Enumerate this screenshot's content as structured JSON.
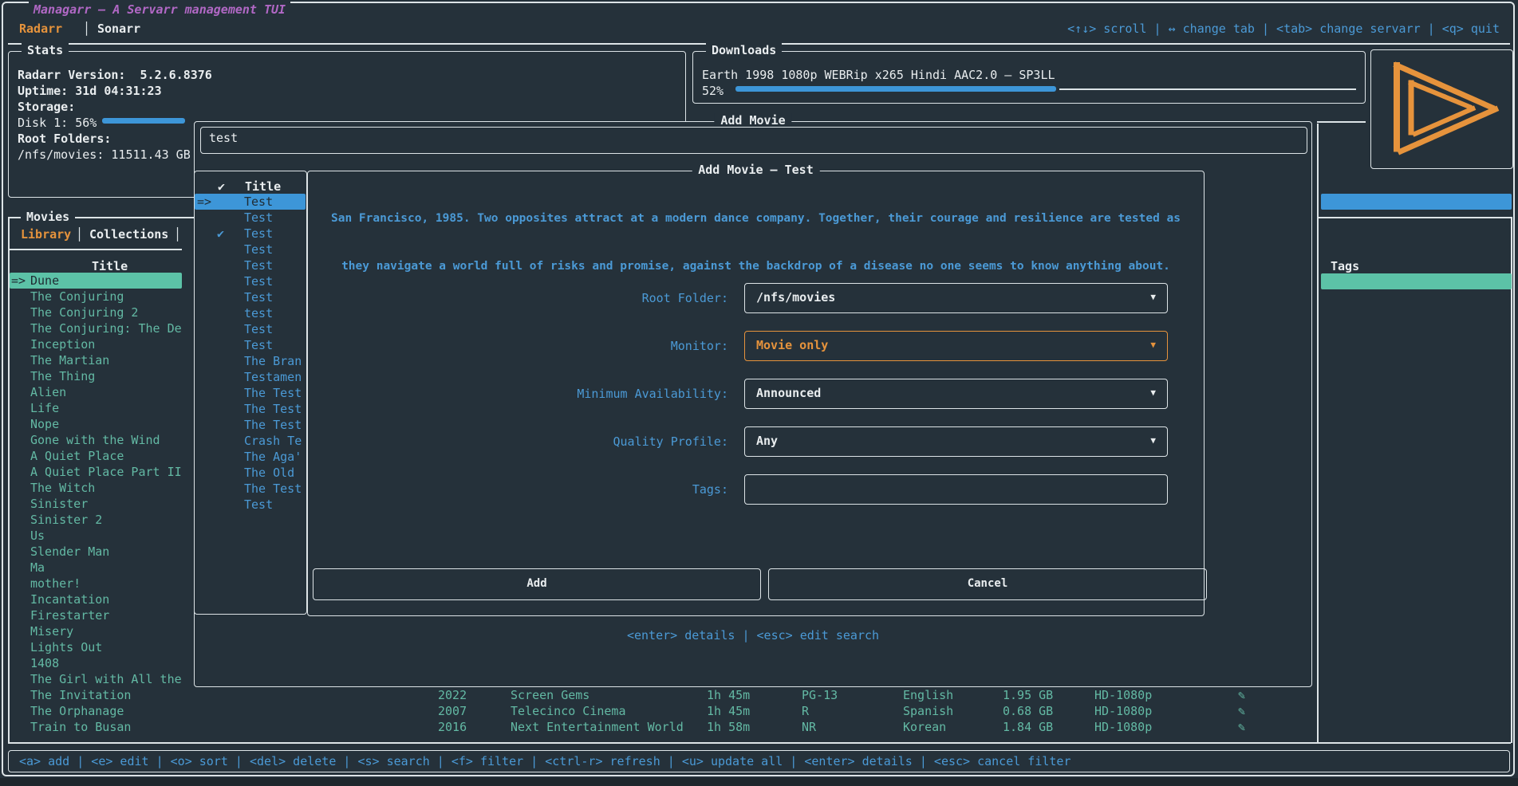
{
  "app": {
    "title": "Managarr – A Servarr management TUI",
    "servarr_tabs": [
      {
        "label": "Radarr",
        "active": true
      },
      {
        "label": "Sonarr",
        "active": false
      }
    ],
    "tab_separator": "│",
    "top_keybinds": "<↑↓> scroll | ↔ change tab | <tab> change servarr | <q> quit",
    "bottom_keybinds": "<a> add | <e> edit | <o> sort | <del> delete | <s> search | <f> filter | <ctrl-r> refresh | <u> update all | <enter> details | <esc> cancel filter"
  },
  "icons": {
    "check": "✔",
    "pencil": "✎",
    "chevron_down": "▼"
  },
  "stats": {
    "title": "Stats",
    "version_line": "Radarr Version:  5.2.6.8376",
    "uptime_line": "Uptime: 31d 04:31:23",
    "storage_label": "Storage:",
    "disk_line": "Disk 1: 56%",
    "disk_percent": 56,
    "root_folders_label": "Root Folders:",
    "root_folder_usage": "/nfs/movies: 11511.43 GB"
  },
  "downloads": {
    "title": "Downloads",
    "item_name": "Earth 1998 1080p WEBRip x265 Hindi AAC2.0 – SP3LL",
    "percent_label": "52%",
    "percent": 52
  },
  "library": {
    "panel_title": "Movies",
    "tabs": [
      {
        "label": "Library",
        "active": true
      },
      {
        "label": "Collections",
        "active": false
      }
    ],
    "title_header": "Title",
    "tags_header": "Tags",
    "selected_index": 0,
    "items": [
      "Dune",
      "The Conjuring",
      "The Conjuring 2",
      "The Conjuring: The De",
      "Inception",
      "The Martian",
      "The Thing",
      "Alien",
      "Life",
      "Nope",
      "Gone with the Wind",
      "A Quiet Place",
      "A Quiet Place Part II",
      "The Witch",
      "Sinister",
      "Sinister 2",
      "Us",
      "Slender Man",
      "Ma",
      "mother!",
      "Incantation",
      "Firestarter",
      "Misery",
      "Lights Out",
      "1408",
      "The Girl with All the",
      "The Invitation",
      "The Orphanage",
      "Train to Busan"
    ],
    "visible_rows": [
      {
        "year": "2022",
        "studio": "Screen Gems",
        "runtime": "1h 45m",
        "certification": "PG-13",
        "language": "English",
        "size": "1.95 GB",
        "quality": "HD-1080p"
      },
      {
        "year": "2007",
        "studio": "Telecinco Cinema",
        "runtime": "1h 45m",
        "certification": "R",
        "language": "Spanish",
        "size": "0.68 GB",
        "quality": "HD-1080p"
      },
      {
        "year": "2016",
        "studio": "Next Entertainment World",
        "runtime": "1h 58m",
        "certification": "NR",
        "language": "Korean",
        "size": "1.84 GB",
        "quality": "HD-1080p"
      }
    ]
  },
  "add_movie_popup": {
    "title": "Add Movie",
    "search_value": "test",
    "results_title_header": "Title",
    "results": [
      {
        "title": "Test",
        "selected": true
      },
      {
        "title": "Test"
      },
      {
        "title": "Test",
        "in_library": true
      },
      {
        "title": "Test"
      },
      {
        "title": "Test"
      },
      {
        "title": "Test"
      },
      {
        "title": "Test"
      },
      {
        "title": "test"
      },
      {
        "title": "Test"
      },
      {
        "title": "Test"
      },
      {
        "title": "The Bran"
      },
      {
        "title": "Testamen"
      },
      {
        "title": "The Test"
      },
      {
        "title": "The Test"
      },
      {
        "title": "The Test"
      },
      {
        "title": "Crash Te"
      },
      {
        "title": "The Aga'"
      },
      {
        "title": "The Old"
      },
      {
        "title": "The Test"
      },
      {
        "title": "Test"
      }
    ],
    "keybinds": "<enter> details | <esc> edit search"
  },
  "add_movie_modal": {
    "title": "Add Movie – Test",
    "overview_line1": "San Francisco, 1985. Two opposites attract at a modern dance company. Together, their courage and resilience are tested as",
    "overview_line2": "they navigate a world full of risks and promise, against the backdrop of a disease no one seems to know anything about.",
    "fields": [
      {
        "label": "Root Folder:",
        "value": "/nfs/movies",
        "type": "select",
        "focused": false
      },
      {
        "label": "Monitor:",
        "value": "Movie only",
        "type": "select",
        "focused": true
      },
      {
        "label": "Minimum Availability:",
        "value": "Announced",
        "type": "select",
        "focused": false
      },
      {
        "label": "Quality Profile:",
        "value": "Any",
        "type": "select",
        "focused": false
      },
      {
        "label": "Tags:",
        "value": "",
        "type": "input",
        "focused": false
      }
    ],
    "add_button": "Add",
    "cancel_button": "Cancel"
  },
  "colors": {
    "accent_orange": "#e6933c",
    "accent_blue": "#4b9ad6",
    "accent_teal": "#63b9a4",
    "title_purple": "#b168c5",
    "selection_blue": "#3d96d8",
    "selection_teal": "#5cc2a7"
  }
}
